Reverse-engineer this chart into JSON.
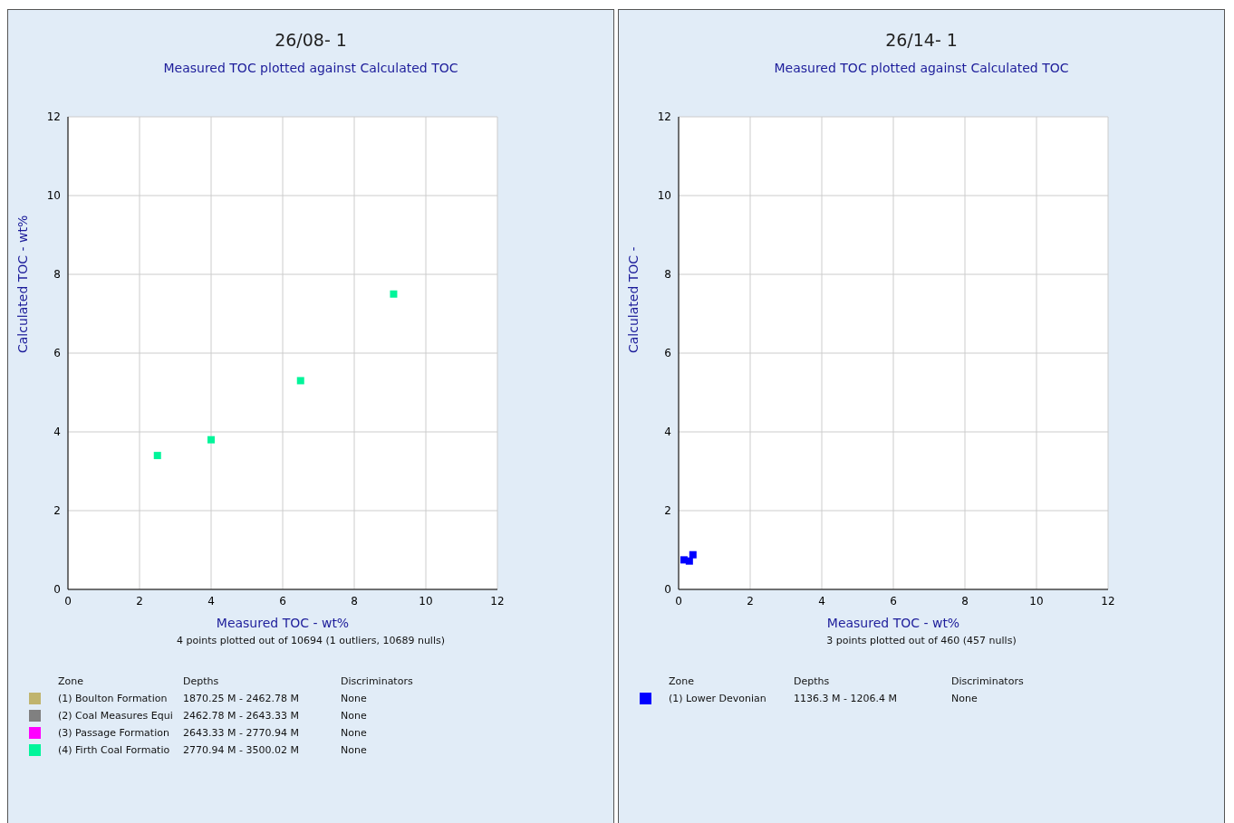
{
  "chart_data": [
    {
      "type": "scatter",
      "title": "26/08- 1",
      "subtitle": "Measured TOC plotted against Calculated TOC",
      "xlabel": "Measured TOC - wt%",
      "ylabel": "Calculated TOC - wt%",
      "xlim": [
        0,
        12
      ],
      "ylim": [
        0,
        12
      ],
      "xticks": [
        0,
        2,
        4,
        6,
        8,
        10,
        12
      ],
      "yticks": [
        0,
        2,
        4,
        6,
        8,
        10,
        12
      ],
      "grid": true,
      "marker": "square",
      "legend": "bottom",
      "legend_title": "Zone",
      "series": [
        {
          "name": "(1) Boulton Formation",
          "color": "#c0b46e"
        },
        {
          "name": "(2) Coal Measures Equi",
          "color": "#808080"
        },
        {
          "name": "(3) Passage Formation",
          "color": "#ff00ff"
        },
        {
          "name": "(4) Firth Coal Formatio",
          "color": "#00f59a",
          "x": [
            2.5,
            4.0,
            6.5,
            9.1
          ],
          "values": [
            3.4,
            3.8,
            5.3,
            7.5
          ]
        }
      ],
      "annotations": [
        "4 points plotted out of 10694 (1 outliers, 10689 nulls)",
        "Depths",
        "Discriminators",
        "1870.25 M - 2462.78 M",
        "None",
        "2462.78 M - 2643.33 M",
        "None",
        "2643.33 M - 2770.94 M",
        "None",
        "2770.94 M - 3500.02 M",
        "None"
      ]
    },
    {
      "type": "scatter",
      "title": "26/14- 1",
      "subtitle": "Measured TOC plotted against Calculated TOC",
      "xlabel": "Measured TOC - wt%",
      "ylabel": "Calculated TOC -",
      "xlim": [
        0,
        12
      ],
      "ylim": [
        0,
        12
      ],
      "xticks": [
        0,
        2,
        4,
        6,
        8,
        10,
        12
      ],
      "yticks": [
        0,
        2,
        4,
        6,
        8,
        10,
        12
      ],
      "grid": true,
      "marker": "square",
      "legend": "bottom",
      "legend_title": "Zone",
      "series": [
        {
          "name": "(1) Lower Devonian",
          "color": "#0000ff",
          "x": [
            0.15,
            0.3,
            0.4
          ],
          "values": [
            0.75,
            0.72,
            0.88
          ]
        }
      ],
      "annotations": [
        "3 points plotted out of 460 (457 nulls)",
        "Depths",
        "Discriminators",
        "1136.3 M - 1206.4 M",
        "None"
      ]
    }
  ]
}
